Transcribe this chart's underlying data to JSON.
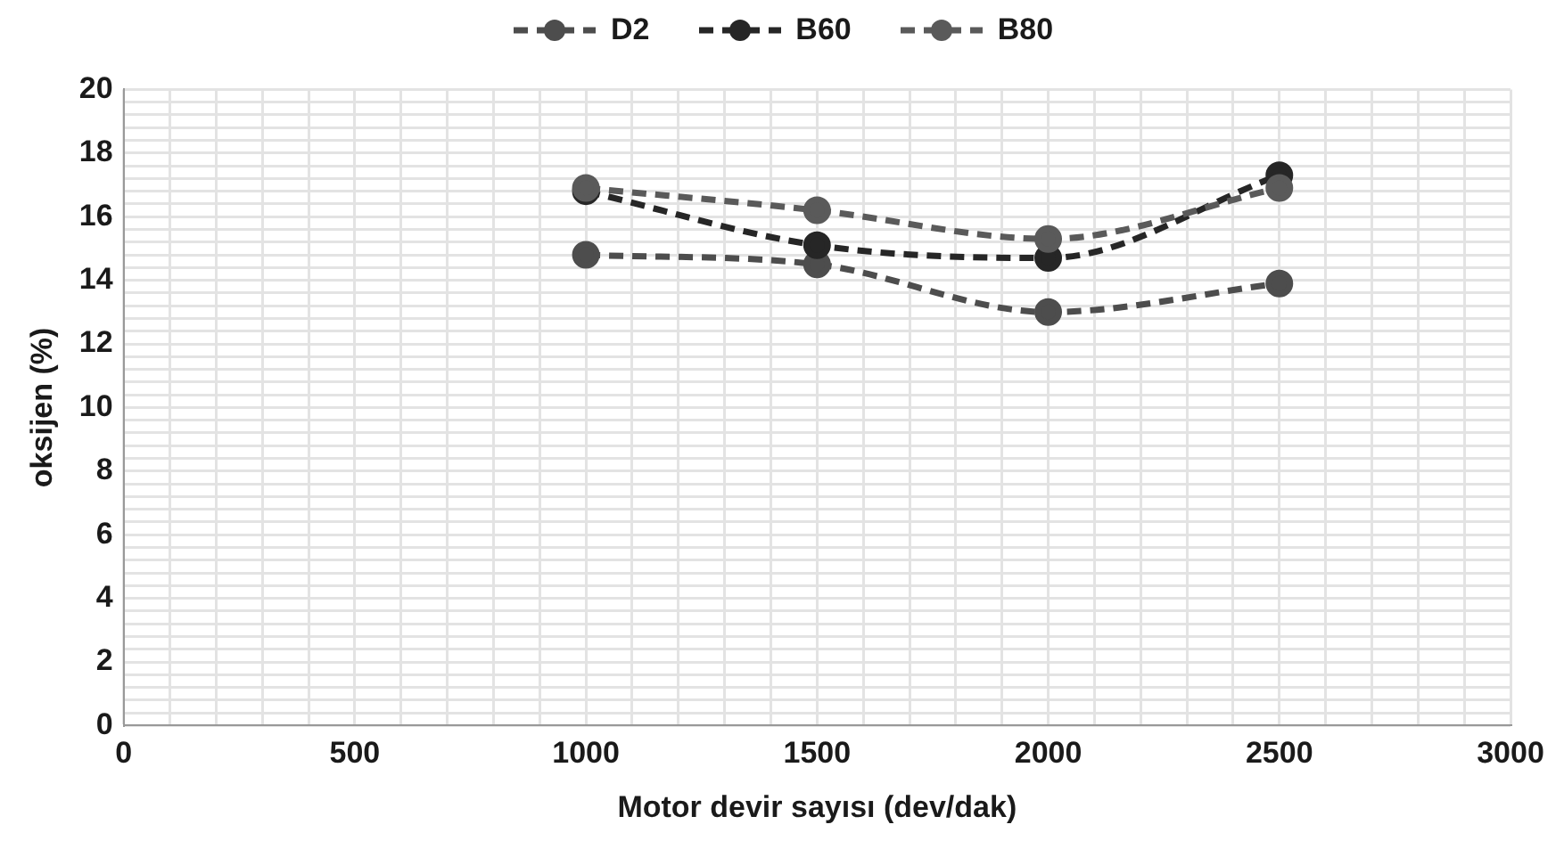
{
  "chart_data": {
    "type": "line",
    "xlabel": "Motor devir sayısı (dev/dak)",
    "ylabel": "oksijen (%)",
    "x": [
      1000,
      1500,
      2000,
      2500
    ],
    "series": [
      {
        "name": "D2",
        "color": "#4d4d4d",
        "values": [
          14.8,
          14.5,
          13.0,
          13.9
        ]
      },
      {
        "name": "B60",
        "color": "#262626",
        "values": [
          16.8,
          15.1,
          14.7,
          17.3
        ]
      },
      {
        "name": "B80",
        "color": "#5a5a5a",
        "values": [
          16.9,
          16.2,
          15.3,
          16.9
        ]
      }
    ],
    "xlim": [
      0,
      3000
    ],
    "ylim": [
      0,
      20
    ],
    "xticks": [
      0,
      {
        "value": 100,
        "label": null
      },
      {
        "value": 200,
        "label": null
      },
      {
        "value": 300,
        "label": null
      },
      {
        "value": 400,
        "label": null
      },
      500,
      {
        "value": 600,
        "label": null
      },
      {
        "value": 700,
        "label": null
      },
      {
        "value": 800,
        "label": null
      },
      {
        "value": 900,
        "label": null
      },
      1000,
      {
        "value": 1100,
        "label": null
      },
      {
        "value": 1200,
        "label": null
      },
      {
        "value": 1300,
        "label": null
      },
      {
        "value": 1400,
        "label": null
      },
      1500,
      {
        "value": 1600,
        "label": null
      },
      {
        "value": 1700,
        "label": null
      },
      {
        "value": 1800,
        "label": null
      },
      {
        "value": 1900,
        "label": null
      },
      2000,
      {
        "value": 2100,
        "label": null
      },
      {
        "value": 2200,
        "label": null
      },
      {
        "value": 2300,
        "label": null
      },
      {
        "value": 2400,
        "label": null
      },
      2500,
      {
        "value": 2600,
        "label": null
      },
      {
        "value": 2700,
        "label": null
      },
      {
        "value": 2800,
        "label": null
      },
      {
        "value": 2900,
        "label": null
      },
      3000
    ],
    "yticks": [
      0,
      {
        "value": 0.4,
        "label": null
      },
      {
        "value": 0.8,
        "label": null
      },
      {
        "value": 1.2,
        "label": null
      },
      {
        "value": 1.6,
        "label": null
      },
      2,
      {
        "value": 2.4,
        "label": null
      },
      {
        "value": 2.8,
        "label": null
      },
      {
        "value": 3.2,
        "label": null
      },
      {
        "value": 3.6,
        "label": null
      },
      4,
      {
        "value": 4.4,
        "label": null
      },
      {
        "value": 4.8,
        "label": null
      },
      {
        "value": 5.2,
        "label": null
      },
      {
        "value": 5.6,
        "label": null
      },
      6,
      {
        "value": 6.4,
        "label": null
      },
      {
        "value": 6.8,
        "label": null
      },
      {
        "value": 7.2,
        "label": null
      },
      {
        "value": 7.6,
        "label": null
      },
      8,
      {
        "value": 8.4,
        "label": null
      },
      {
        "value": 8.8,
        "label": null
      },
      {
        "value": 9.2,
        "label": null
      },
      {
        "value": 9.6,
        "label": null
      },
      10,
      {
        "value": 10.4,
        "label": null
      },
      {
        "value": 10.8,
        "label": null
      },
      {
        "value": 11.2,
        "label": null
      },
      {
        "value": 11.6,
        "label": null
      },
      12,
      {
        "value": 12.4,
        "label": null
      },
      {
        "value": 12.8,
        "label": null
      },
      {
        "value": 13.2,
        "label": null
      },
      {
        "value": 13.6,
        "label": null
      },
      14,
      {
        "value": 14.4,
        "label": null
      },
      {
        "value": 14.8,
        "label": null
      },
      {
        "value": 15.2,
        "label": null
      },
      {
        "value": 15.6,
        "label": null
      },
      16,
      {
        "value": 16.4,
        "label": null
      },
      {
        "value": 16.8,
        "label": null
      },
      {
        "value": 17.2,
        "label": null
      },
      {
        "value": 17.6,
        "label": null
      },
      18,
      {
        "value": 18.4,
        "label": null
      },
      {
        "value": 18.8,
        "label": null
      },
      {
        "value": 19.2,
        "label": null
      },
      {
        "value": 19.6,
        "label": null
      },
      20
    ],
    "grid": true,
    "legend": "top",
    "marker": "circle",
    "line_style": "dashed"
  }
}
